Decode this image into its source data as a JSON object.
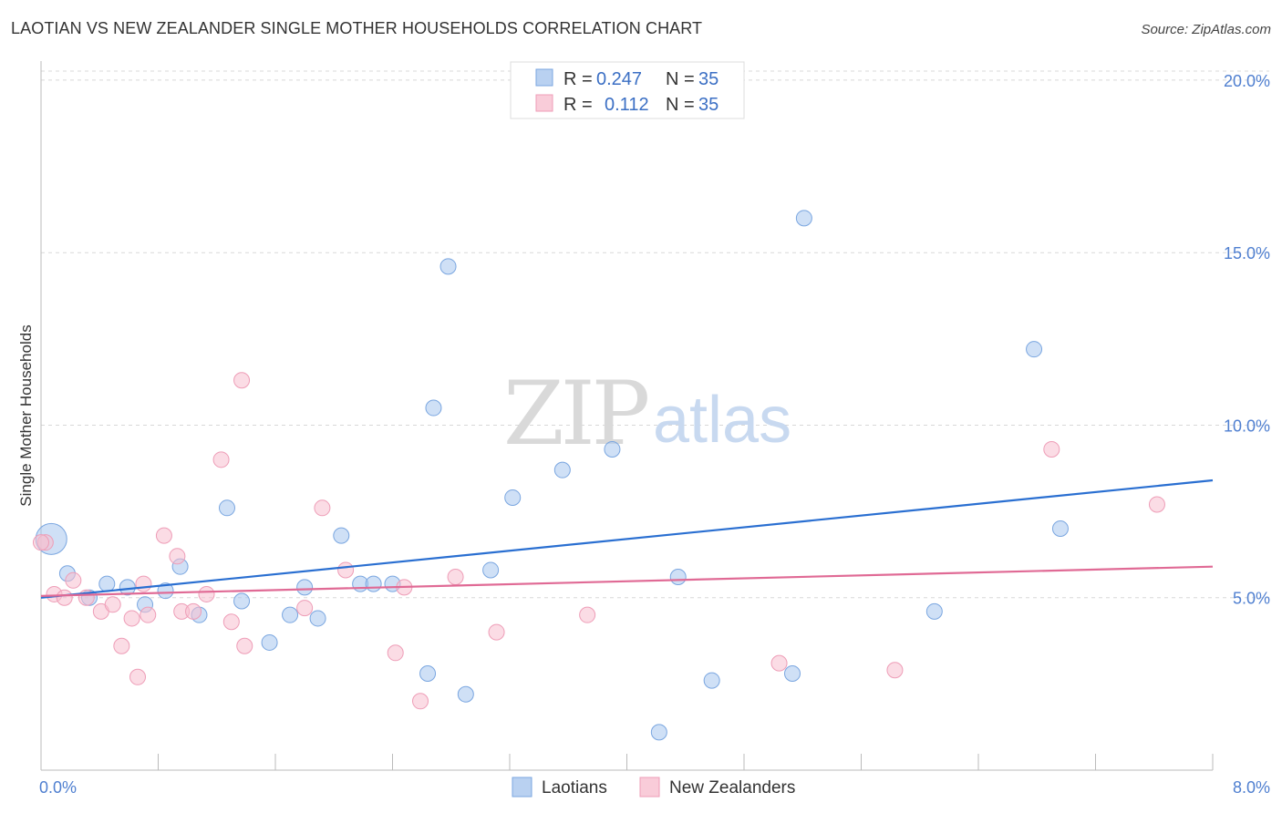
{
  "header": {
    "title": "LAOTIAN VS NEW ZEALANDER SINGLE MOTHER HOUSEHOLDS CORRELATION CHART",
    "source": "Source: ZipAtlas.com"
  },
  "watermark": {
    "zip": "ZIP",
    "atlas": "atlas"
  },
  "chart_data": {
    "type": "scatter",
    "title": "LAOTIAN VS NEW ZEALANDER SINGLE MOTHER HOUSEHOLDS CORRELATION CHART",
    "xlabel": "",
    "ylabel": "Single Mother Households",
    "xlim": [
      0,
      8
    ],
    "ylim": [
      0,
      20.5
    ],
    "x_tick_labels": [
      "0.0%",
      "8.0%"
    ],
    "y_ticks": [
      5,
      10,
      15,
      20
    ],
    "y_tick_labels": [
      "5.0%",
      "10.0%",
      "15.0%",
      "20.0%"
    ],
    "grid": true,
    "legend_position": "top-center",
    "series": [
      {
        "name": "Laotians",
        "color": "#a8c6ee",
        "edge_color": "#7aa6e0",
        "line_color": "#2a6fd1",
        "r": "0.247",
        "n": "35",
        "trend": {
          "x": [
            0,
            8
          ],
          "y": [
            5.0,
            8.4
          ]
        },
        "points": [
          {
            "x": 0.07,
            "y": 6.7,
            "big": true
          },
          {
            "x": 0.18,
            "y": 5.7
          },
          {
            "x": 0.33,
            "y": 5.0
          },
          {
            "x": 0.45,
            "y": 5.4
          },
          {
            "x": 0.59,
            "y": 5.3
          },
          {
            "x": 0.71,
            "y": 4.8
          },
          {
            "x": 0.85,
            "y": 5.2
          },
          {
            "x": 0.95,
            "y": 5.9
          },
          {
            "x": 1.08,
            "y": 4.5
          },
          {
            "x": 1.27,
            "y": 7.6
          },
          {
            "x": 1.37,
            "y": 4.9
          },
          {
            "x": 1.56,
            "y": 3.7
          },
          {
            "x": 1.7,
            "y": 4.5
          },
          {
            "x": 1.8,
            "y": 5.3
          },
          {
            "x": 1.89,
            "y": 4.4
          },
          {
            "x": 2.05,
            "y": 6.8
          },
          {
            "x": 2.18,
            "y": 5.4
          },
          {
            "x": 2.27,
            "y": 5.4
          },
          {
            "x": 2.4,
            "y": 5.4
          },
          {
            "x": 2.64,
            "y": 2.8
          },
          {
            "x": 2.68,
            "y": 10.5
          },
          {
            "x": 2.78,
            "y": 14.6
          },
          {
            "x": 2.9,
            "y": 2.2
          },
          {
            "x": 3.07,
            "y": 5.8
          },
          {
            "x": 3.22,
            "y": 7.9
          },
          {
            "x": 3.56,
            "y": 8.7
          },
          {
            "x": 3.9,
            "y": 9.3
          },
          {
            "x": 4.22,
            "y": 1.1
          },
          {
            "x": 4.35,
            "y": 5.6
          },
          {
            "x": 4.58,
            "y": 2.6
          },
          {
            "x": 5.13,
            "y": 2.8
          },
          {
            "x": 5.21,
            "y": 16.0
          },
          {
            "x": 6.1,
            "y": 4.6
          },
          {
            "x": 6.78,
            "y": 12.2
          },
          {
            "x": 6.96,
            "y": 7.0
          }
        ]
      },
      {
        "name": "New Zealanders",
        "color": "#f7bfd0",
        "edge_color": "#ee9db7",
        "line_color": "#e06a95",
        "r": "0.112",
        "n": "35",
        "trend": {
          "x": [
            0,
            8
          ],
          "y": [
            5.05,
            5.9
          ]
        },
        "points": [
          {
            "x": 0.03,
            "y": 6.6
          },
          {
            "x": 0.09,
            "y": 5.1
          },
          {
            "x": 0.16,
            "y": 5.0
          },
          {
            "x": 0.22,
            "y": 5.5
          },
          {
            "x": 0.31,
            "y": 5.0
          },
          {
            "x": 0.41,
            "y": 4.6
          },
          {
            "x": 0.49,
            "y": 4.8
          },
          {
            "x": 0.55,
            "y": 3.6
          },
          {
            "x": 0.62,
            "y": 4.4
          },
          {
            "x": 0.66,
            "y": 2.7
          },
          {
            "x": 0.7,
            "y": 5.4
          },
          {
            "x": 0.73,
            "y": 4.5
          },
          {
            "x": 0.84,
            "y": 6.8
          },
          {
            "x": 0.93,
            "y": 6.2
          },
          {
            "x": 0.96,
            "y": 4.6
          },
          {
            "x": 1.04,
            "y": 4.6
          },
          {
            "x": 1.13,
            "y": 5.1
          },
          {
            "x": 1.23,
            "y": 9.0
          },
          {
            "x": 1.3,
            "y": 4.3
          },
          {
            "x": 1.37,
            "y": 11.3
          },
          {
            "x": 1.39,
            "y": 3.6
          },
          {
            "x": 1.8,
            "y": 4.7
          },
          {
            "x": 1.92,
            "y": 7.6
          },
          {
            "x": 2.08,
            "y": 5.8
          },
          {
            "x": 2.42,
            "y": 3.4
          },
          {
            "x": 2.48,
            "y": 5.3
          },
          {
            "x": 2.59,
            "y": 2.0
          },
          {
            "x": 2.83,
            "y": 5.6
          },
          {
            "x": 3.11,
            "y": 4.0
          },
          {
            "x": 3.73,
            "y": 4.5
          },
          {
            "x": 5.04,
            "y": 3.1
          },
          {
            "x": 5.83,
            "y": 2.9
          },
          {
            "x": 6.9,
            "y": 9.3
          },
          {
            "x": 7.62,
            "y": 7.7
          },
          {
            "x": 0.0,
            "y": 6.6
          }
        ]
      }
    ]
  }
}
